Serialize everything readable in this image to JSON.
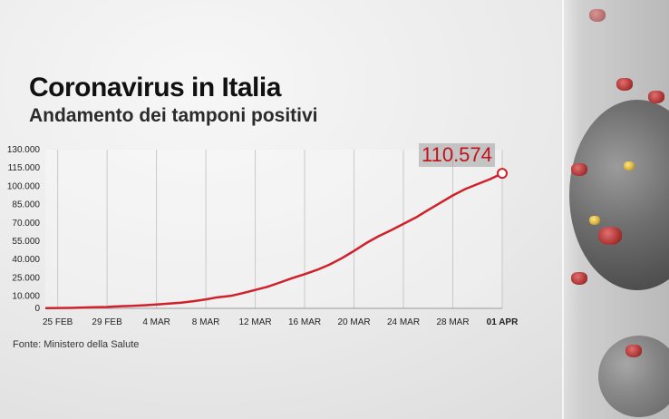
{
  "header": {
    "title": "Coronavirus in Italia",
    "subtitle": "Andamento dei tamponi positivi"
  },
  "footer": {
    "source": "Fonte: Ministero della Salute"
  },
  "callout": {
    "latest_value": "110.574"
  },
  "colors": {
    "line": "#d0202a",
    "text": "#111111",
    "grid": "#c9c9c9"
  },
  "chart_data": {
    "type": "line",
    "title": "Coronavirus in Italia",
    "subtitle": "Andamento dei tamponi positivi",
    "xlabel": "",
    "ylabel": "",
    "ylim": [
      0,
      130000
    ],
    "y_ticks": [
      0,
      10000,
      25000,
      40000,
      55000,
      70000,
      85000,
      100000,
      115000,
      130000
    ],
    "y_tick_labels": [
      "0",
      "10.000",
      "25.000",
      "40.000",
      "55.000",
      "70.000",
      "85.000",
      "100.000",
      "115.000",
      "130.000"
    ],
    "x_tick_labels": [
      "25 FEB",
      "29 FEB",
      "4 MAR",
      "8 MAR",
      "12 MAR",
      "16 MAR",
      "20 MAR",
      "24 MAR",
      "28 MAR",
      "01 APR"
    ],
    "grid": "vertical",
    "series": [
      {
        "name": "",
        "x": [
          "2020-02-24",
          "2020-02-25",
          "2020-02-26",
          "2020-02-27",
          "2020-02-28",
          "2020-02-29",
          "2020-03-01",
          "2020-03-02",
          "2020-03-03",
          "2020-03-04",
          "2020-03-05",
          "2020-03-06",
          "2020-03-07",
          "2020-03-08",
          "2020-03-09",
          "2020-03-10",
          "2020-03-11",
          "2020-03-12",
          "2020-03-13",
          "2020-03-14",
          "2020-03-15",
          "2020-03-16",
          "2020-03-17",
          "2020-03-18",
          "2020-03-19",
          "2020-03-20",
          "2020-03-21",
          "2020-03-22",
          "2020-03-23",
          "2020-03-24",
          "2020-03-25",
          "2020-03-26",
          "2020-03-27",
          "2020-03-28",
          "2020-03-29",
          "2020-03-30",
          "2020-03-31",
          "2020-04-01"
        ],
        "values": [
          229,
          322,
          400,
          650,
          888,
          1128,
          1694,
          2036,
          2502,
          3089,
          3858,
          4636,
          5883,
          7375,
          9172,
          10149,
          12462,
          15113,
          17660,
          21157,
          24747,
          27980,
          31506,
          35713,
          41035,
          47021,
          53578,
          59138,
          63927,
          69176,
          74386,
          80539,
          86498,
          92472,
          97689,
          101739,
          105792,
          110574
        ]
      }
    ],
    "annotation": "110.574"
  }
}
